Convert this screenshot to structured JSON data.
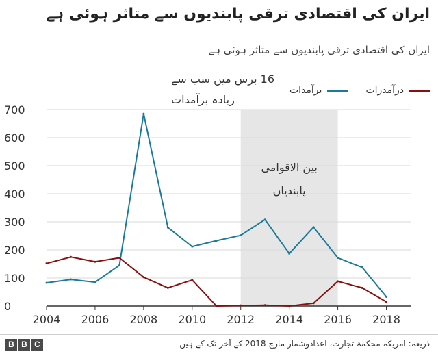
{
  "header": {
    "title": "ایران کی اقتصادی ترقی پابندیوں سے متاثر ہوئی ہے",
    "subtitle": "ایران کی اقتصادی ترقی پابندیوں سے متاثر ہوئی ہے"
  },
  "legend": {
    "exports": "برآمدات",
    "imports": "درآمدرات"
  },
  "colors": {
    "exports": "#1a7a97",
    "imports": "#8a1010",
    "shade": "#e6e6e6",
    "grid": "#d9d9d9"
  },
  "footer": {
    "source": "ذریعہ: امریکہ محکمۂ تجارت، اعدادوشمار مارچ 2018 کے آخر تک کے ہیں",
    "logo": [
      "B",
      "B",
      "C"
    ]
  },
  "chart_data": {
    "type": "line",
    "title": "ایران کی اقتصادی ترقی پابندیوں سے متاثر ہوئی ہے",
    "xlabel": "",
    "ylabel": "",
    "x": [
      2004,
      2005,
      2006,
      2007,
      2008,
      2009,
      2010,
      2011,
      2012,
      2013,
      2014,
      2015,
      2016,
      2017,
      2018
    ],
    "xlim": [
      2004,
      2019
    ],
    "ylim": [
      0,
      700
    ],
    "xticks": [
      "2004",
      "2006",
      "2008",
      "2010",
      "2012",
      "2014",
      "2016",
      "2018"
    ],
    "xtick_values": [
      2004,
      2006,
      2008,
      2010,
      2012,
      2014,
      2016,
      2018
    ],
    "yticks": [
      "0",
      "100",
      "200",
      "300",
      "400",
      "500",
      "600",
      "700"
    ],
    "ytick_values": [
      0,
      100,
      200,
      300,
      400,
      500,
      600,
      700
    ],
    "grid": true,
    "series": [
      {
        "name": "برآمدات",
        "key": "exports",
        "values": [
          83,
          95,
          85,
          145,
          685,
          280,
          212,
          233,
          252,
          308,
          187,
          281,
          172,
          138,
          33
        ]
      },
      {
        "name": "درآمدرات",
        "key": "imports",
        "values": [
          152,
          175,
          158,
          172,
          103,
          65,
          93,
          0,
          2,
          3,
          0,
          10,
          88,
          65,
          15
        ]
      }
    ],
    "shaded_region": {
      "from": 2012,
      "to": 2016,
      "label_line1": "بین الاقوامی",
      "label_line2": "پابندیاں"
    },
    "annotation": {
      "line1": "16 برس میں سب سے",
      "line2": "زیادہ برآمدات",
      "x": 2008,
      "y": 685
    }
  }
}
